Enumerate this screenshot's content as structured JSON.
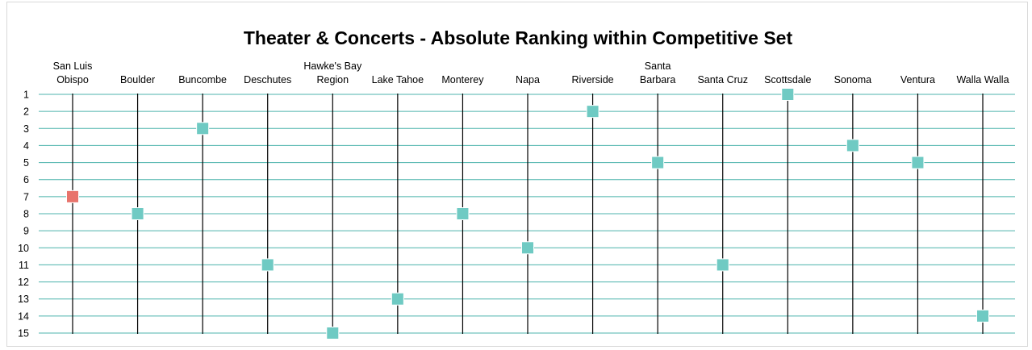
{
  "chart_data": {
    "type": "scatter",
    "title": "Theater & Concerts - Absolute Ranking within Competitive Set",
    "categories": [
      [
        "San Luis",
        "Obispo"
      ],
      [
        "Boulder"
      ],
      [
        "Buncombe"
      ],
      [
        "Deschutes"
      ],
      [
        "Hawke's Bay",
        "Region"
      ],
      [
        "Lake Tahoe"
      ],
      [
        "Monterey"
      ],
      [
        "Napa"
      ],
      [
        "Riverside"
      ],
      [
        "Santa",
        "Barbara"
      ],
      [
        "Santa Cruz"
      ],
      [
        "Scottsdale"
      ],
      [
        "Sonoma"
      ],
      [
        "Ventura"
      ],
      [
        "Walla Walla"
      ]
    ],
    "values": [
      7,
      8,
      3,
      11,
      15,
      13,
      8,
      10,
      2,
      5,
      11,
      1,
      4,
      5,
      14
    ],
    "highlight_index": 0,
    "y_ticks": [
      "1",
      "2",
      "3",
      "4",
      "5",
      "6",
      "7",
      "8",
      "9",
      "10",
      "11",
      "12",
      "13",
      "14",
      "15"
    ],
    "ylim": [
      1,
      15
    ],
    "y_reversed": true,
    "grid": true,
    "colors": {
      "highlight": "#e8746c",
      "marker": "#6fcac3",
      "gridline": "#4cb3ac",
      "category_line": "#000000"
    }
  }
}
